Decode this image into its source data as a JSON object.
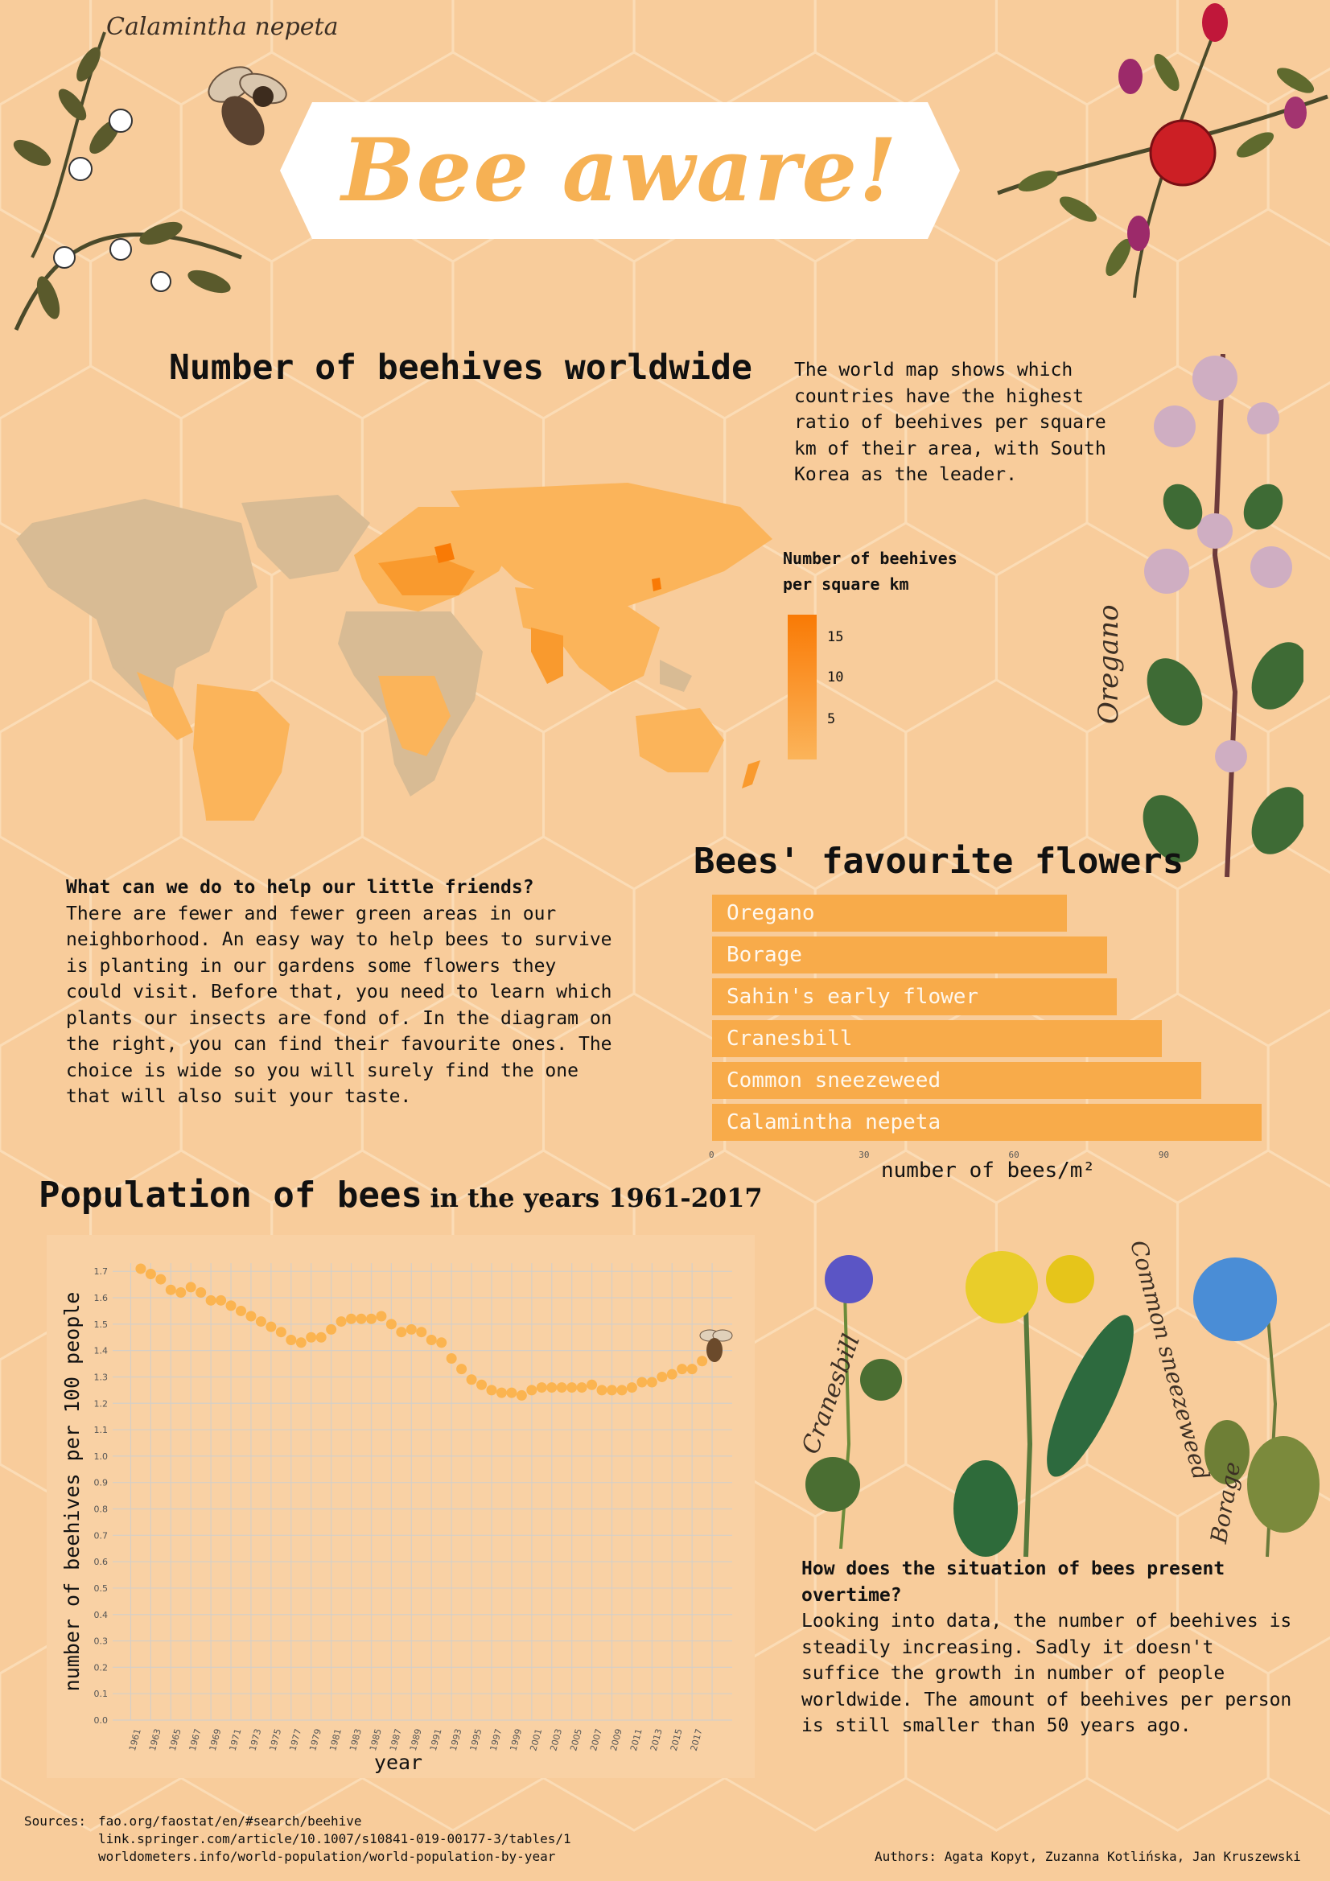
{
  "header": {
    "title": "Bee aware!",
    "corner_label": "Calamintha nepeta"
  },
  "map_section": {
    "heading": "Number of beehives worldwide",
    "description": "The world map shows which countries have the highest ratio of beehives per square km of their area, with South Korea as the leader.",
    "legend_title_line1": "Number of beehives",
    "legend_title_line2": "per square km",
    "legend_ticks": [
      "15",
      "10",
      "5"
    ],
    "color_low": "#fbb45a",
    "color_high": "#f97a05"
  },
  "flowers_section": {
    "heading": "Bees' favourite flowers",
    "help_title": "What can we do to help our little friends?",
    "help_text": "There are fewer and fewer green areas in our neighborhood. An easy way to help bees to survive is planting in our gardens some flowers they could visit. Before that, you need to learn which plants our insects are fond of. In the diagram on the right, you can find their favourite ones. The choice is wide so you will surely find the one that will also suit your taste.",
    "plant_label_oregano": "Oregano"
  },
  "population_section": {
    "heading_main": "Population of bees",
    "heading_sub": "in the years 1961-2017",
    "situation_title": "How does the situation of bees present overtime?",
    "situation_text": "Looking into data, the number of beehives is steadily increasing. Sadly it doesn't suffice the growth in number of people worldwide. The amount of beehives per person is still smaller than 50 years ago.",
    "plant_labels": [
      "Cranesbill",
      "Common sneezeweed",
      "Borage"
    ]
  },
  "footer": {
    "sources_label": "Sources:",
    "sources": [
      "fao.org/faostat/en/#search/beehive",
      "link.springer.com/article/10.1007/s10841-019-00177-3/tables/1",
      "worldometers.info/world-population/world-population-by-year"
    ],
    "authors": "Authors: Agata Kopyt, Zuzanna Kotlińska, Jan Kruszewski"
  },
  "chart_data": [
    {
      "type": "bar",
      "orientation": "horizontal",
      "categories": [
        "Oregano",
        "Borage",
        "Sahin's early flower",
        "Cranesbill",
        "Common sneezeweed",
        "Calamintha nepeta"
      ],
      "values": [
        71,
        79,
        81,
        90,
        98,
        110
      ],
      "xlabel": "number of bees/m²",
      "xlim": [
        0,
        110
      ],
      "xticks": [
        0,
        30,
        60,
        90
      ],
      "color": "#f8ab4a"
    },
    {
      "type": "scatter",
      "x": [
        1961,
        1962,
        1963,
        1964,
        1965,
        1966,
        1967,
        1968,
        1969,
        1970,
        1971,
        1972,
        1973,
        1974,
        1975,
        1976,
        1977,
        1978,
        1979,
        1980,
        1981,
        1982,
        1983,
        1984,
        1985,
        1986,
        1987,
        1988,
        1989,
        1990,
        1991,
        1992,
        1993,
        1994,
        1995,
        1996,
        1997,
        1998,
        1999,
        2000,
        2001,
        2002,
        2003,
        2004,
        2005,
        2006,
        2007,
        2008,
        2009,
        2010,
        2011,
        2012,
        2013,
        2014,
        2015,
        2016,
        2017
      ],
      "y": [
        1.71,
        1.69,
        1.67,
        1.63,
        1.62,
        1.64,
        1.62,
        1.59,
        1.59,
        1.57,
        1.55,
        1.53,
        1.51,
        1.49,
        1.47,
        1.44,
        1.43,
        1.45,
        1.45,
        1.48,
        1.51,
        1.52,
        1.52,
        1.52,
        1.53,
        1.5,
        1.47,
        1.48,
        1.47,
        1.44,
        1.43,
        1.37,
        1.33,
        1.29,
        1.27,
        1.25,
        1.24,
        1.24,
        1.23,
        1.25,
        1.26,
        1.26,
        1.26,
        1.26,
        1.26,
        1.27,
        1.25,
        1.25,
        1.25,
        1.26,
        1.28,
        1.28,
        1.3,
        1.31,
        1.33,
        1.33,
        1.36
      ],
      "xlabel": "year",
      "ylabel": "number of beehives per 100 people",
      "ylim": [
        0,
        1.7
      ],
      "yticks": [
        "0.0",
        "0.1",
        "0.2",
        "0.3",
        "0.4",
        "0.5",
        "0.6",
        "0.7",
        "0.8",
        "0.9",
        "1.0",
        "1.1",
        "1.2",
        "1.3",
        "1.4",
        "1.5",
        "1.6",
        "1.7"
      ],
      "xticks": [
        1961,
        1963,
        1965,
        1967,
        1969,
        1971,
        1973,
        1975,
        1977,
        1979,
        1981,
        1983,
        1985,
        1987,
        1989,
        1991,
        1993,
        1995,
        1997,
        1999,
        2001,
        2003,
        2005,
        2007,
        2009,
        2011,
        2013,
        2015,
        2017
      ],
      "grid": true,
      "color": "#fbb450"
    }
  ]
}
